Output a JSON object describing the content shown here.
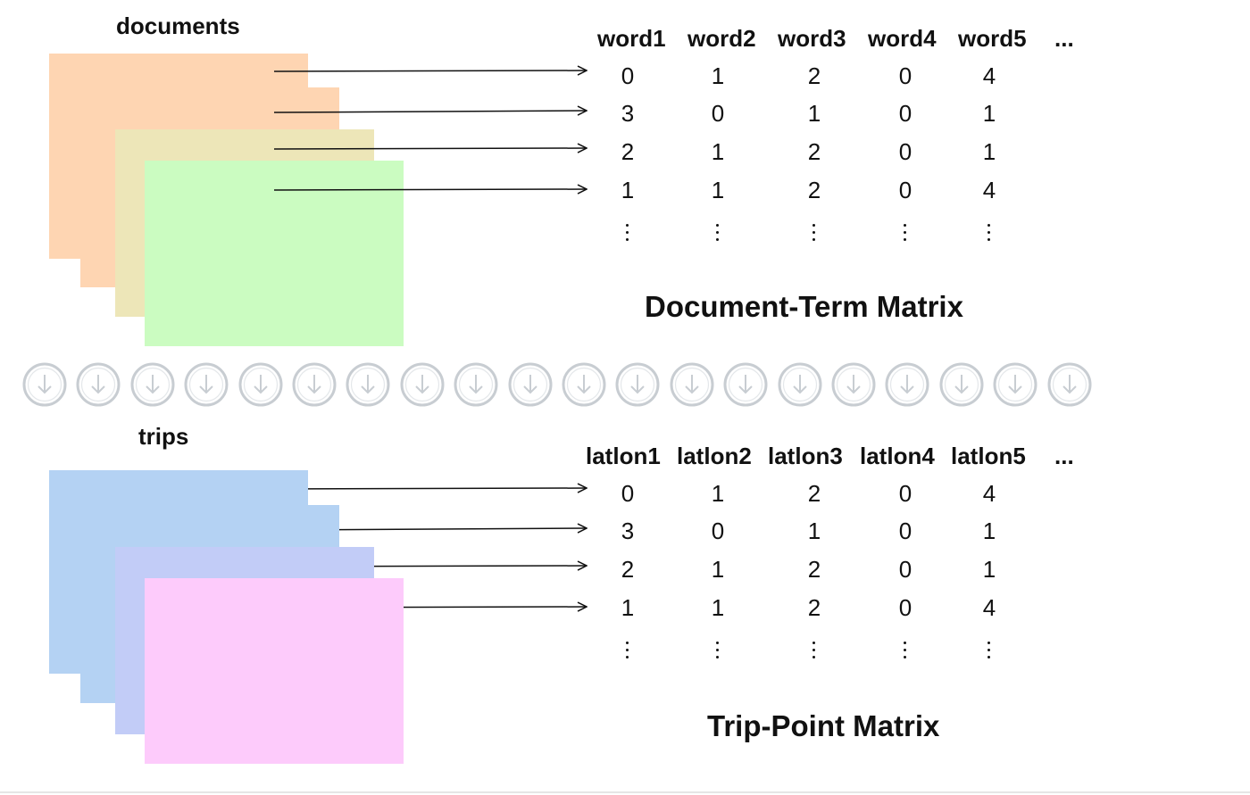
{
  "top": {
    "label": "documents",
    "headers": [
      "word1",
      "word2",
      "word3",
      "word4",
      "word5",
      "..."
    ],
    "rows": [
      [
        "0",
        "1",
        "2",
        "0",
        "4"
      ],
      [
        "3",
        "0",
        "1",
        "0",
        "1"
      ],
      [
        "2",
        "1",
        "2",
        "0",
        "1"
      ],
      [
        "1",
        "1",
        "2",
        "0",
        "4"
      ]
    ],
    "title": "Document-Term Matrix",
    "colors": {
      "back": "#fed5b2",
      "middle": "#ede6b8",
      "front": "#cbfcc1"
    }
  },
  "bottom": {
    "label": "trips",
    "headers": [
      "latlon1",
      "latlon2",
      "latlon3",
      "latlon4",
      "latlon5",
      "..."
    ],
    "rows": [
      [
        "0",
        "1",
        "2",
        "0",
        "4"
      ],
      [
        "3",
        "0",
        "1",
        "0",
        "1"
      ],
      [
        "2",
        "1",
        "2",
        "0",
        "1"
      ],
      [
        "1",
        "1",
        "2",
        "0",
        "4"
      ]
    ],
    "title": "Trip-Point Matrix",
    "colors": {
      "back": "#b4d2f3",
      "middle": "#c2ccf7",
      "front": "#fdcbfb"
    }
  },
  "divider": {
    "icon": "down-arrow-circle-icon",
    "count": 20,
    "color": "#c8cdd2"
  }
}
